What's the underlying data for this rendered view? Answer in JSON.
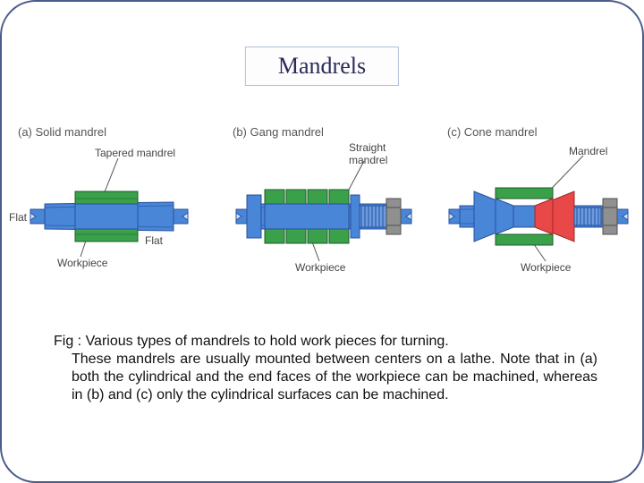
{
  "title": "Mandrels",
  "colors": {
    "frame": "#4a5b8a",
    "mandrel_fill": "#4a86d8",
    "mandrel_stroke": "#27509c",
    "workpiece_fill": "#3aa04a",
    "workpiece_stroke": "#1e5c28",
    "cone_fill": "#e84848",
    "cone_stroke": "#a02828",
    "nut_fill": "#909090",
    "nut_stroke": "#505050",
    "callout": "#555555",
    "label": "#444444"
  },
  "figures": {
    "a": {
      "tag": "(a)",
      "name": "Solid mandrel",
      "callout": "Tapered mandrel",
      "label_flat": "Flat",
      "label_workpiece": "Workpiece"
    },
    "b": {
      "tag": "(b)",
      "name": "Gang mandrel",
      "callout": "Straight mandrel",
      "label_workpiece": "Workpiece"
    },
    "c": {
      "tag": "(c)",
      "name": "Cone mandrel",
      "callout": "Mandrel",
      "label_workpiece": "Workpiece"
    }
  },
  "caption_lead": "Fig : Various types of mandrels to hold work pieces for turning.",
  "caption_rest": "These mandrels are usually mounted between centers on a lathe. Note that in (a) both the cylindrical and the end faces of the workpiece can be machined, whereas in (b) and (c) only the cylindrical surfaces can be machined."
}
